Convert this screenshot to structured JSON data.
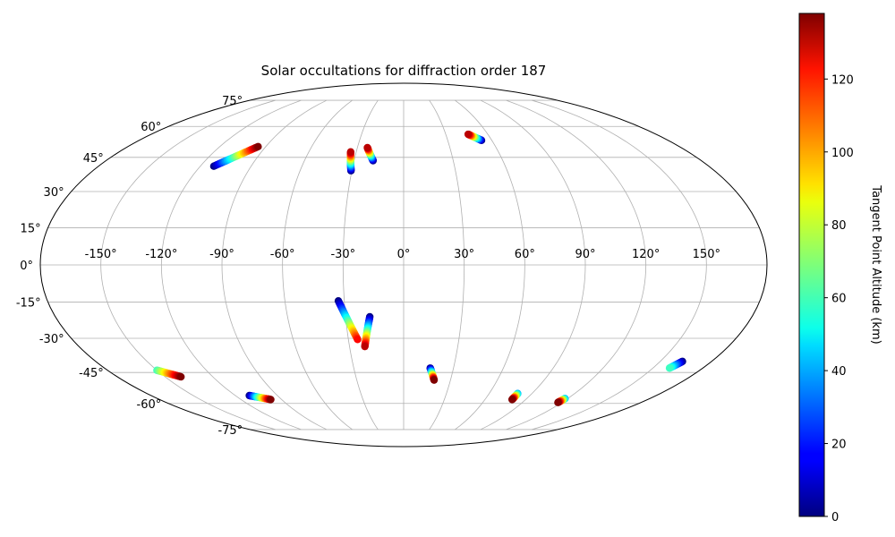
{
  "chart_data": {
    "type": "scatter",
    "projection": "mollweide",
    "title": "Solar occultations for diffraction order 187",
    "grid": true,
    "lon_ticks": [
      -150,
      -120,
      -90,
      -60,
      -30,
      0,
      30,
      60,
      90,
      120,
      150
    ],
    "lat_ticks": [
      -75,
      -60,
      -45,
      -30,
      -15,
      0,
      15,
      30,
      45,
      60,
      75
    ],
    "lon_tick_labels": [
      "-150°",
      "-120°",
      "-90°",
      "-60°",
      "-30°",
      "0°",
      "30°",
      "60°",
      "90°",
      "120°",
      "150°"
    ],
    "lat_tick_labels": [
      "-75°",
      "-60°",
      "-45°",
      "-30°",
      "-15°",
      "0°",
      "15°",
      "30°",
      "45°",
      "60°",
      "75°"
    ],
    "colorbar": {
      "label": "Tangent Point Altitude (km)",
      "range": [
        0,
        138
      ],
      "ticks": [
        0,
        20,
        40,
        60,
        80,
        100,
        120
      ],
      "tick_labels": [
        "0",
        "20",
        "40",
        "60",
        "80",
        "100",
        "120"
      ],
      "colormap": "jet"
    },
    "tracks": [
      {
        "lon_start": -112,
        "lat_start": 41,
        "alt_start": 0,
        "lon_end": -95,
        "lat_end": 50,
        "alt_end": 138
      },
      {
        "lon_start": -30.5,
        "lat_start": 39,
        "alt_start": 0,
        "lon_end": -33.5,
        "lat_end": 47.5,
        "alt_end": 130
      },
      {
        "lon_start": -18.5,
        "lat_start": 43.5,
        "alt_start": 0,
        "lon_end": -23.5,
        "lat_end": 49.5,
        "alt_end": 130
      },
      {
        "lon_start": 53,
        "lat_start": 53,
        "alt_start": 0,
        "lon_end": 46,
        "lat_end": 56,
        "alt_end": 130
      },
      {
        "lon_start": -33,
        "lat_start": -14.5,
        "alt_start": 0,
        "lon_end": -25,
        "lat_end": -30.5,
        "alt_end": 120
      },
      {
        "lon_start": -17.5,
        "lat_start": -21,
        "alt_start": 0,
        "lon_end": -21.5,
        "lat_end": -33.5,
        "alt_end": 130
      },
      {
        "lon_start": 16,
        "lat_start": -43,
        "alt_start": 0,
        "lon_end": 19.5,
        "lat_end": -48.5,
        "alt_end": 138
      },
      {
        "lon_start": -150,
        "lat_start": -44,
        "alt_start": 60,
        "lon_end": -140,
        "lat_end": -47,
        "alt_end": 138
      },
      {
        "lon_start": -110,
        "lat_start": -56,
        "alt_start": 0,
        "lon_end": -98,
        "lat_end": -58,
        "alt_end": 138
      },
      {
        "lon_start": 80,
        "lat_start": -55,
        "alt_start": 40,
        "lon_end": 80,
        "lat_end": -58,
        "alt_end": 138
      },
      {
        "lon_start": 118,
        "lat_start": -57.5,
        "alt_start": 40,
        "lon_end": 117,
        "lat_end": -59.5,
        "alt_end": 138
      },
      {
        "lon_start": 163,
        "lat_start": -40,
        "alt_start": 0,
        "lon_end": 160,
        "lat_end": -43,
        "alt_end": 60
      }
    ]
  }
}
